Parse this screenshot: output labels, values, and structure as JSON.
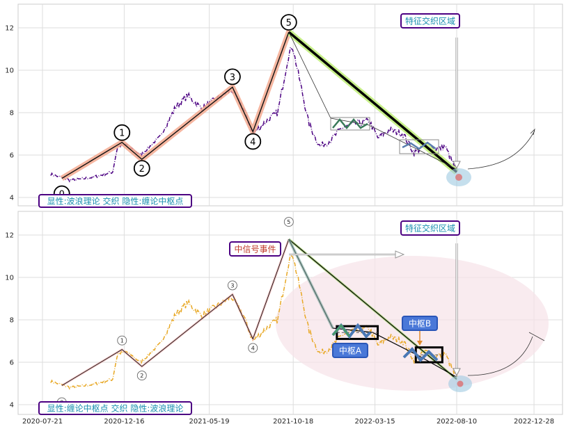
{
  "chart_data": {
    "type": "line",
    "x_ticks": [
      "2020-07-21",
      "2020-12-16",
      "2021-05-19",
      "2021-10-18",
      "2022-03-15",
      "2022-08-10",
      "2022-12-28"
    ],
    "panels": [
      {
        "ylim": [
          3.6,
          13.1
        ],
        "y_ticks": [
          4,
          6,
          8,
          10,
          12
        ],
        "price_color": "#4b0082",
        "wave_color": "#f3a98f",
        "wave_points": [
          {
            "label": "0",
            "date": "2020-08-25",
            "value": 4.9
          },
          {
            "label": "1",
            "date": "2020-12-12",
            "value": 6.6
          },
          {
            "label": "2",
            "date": "2021-01-17",
            "value": 5.8
          },
          {
            "label": "3",
            "date": "2021-06-30",
            "value": 9.2
          },
          {
            "label": "4",
            "date": "2021-08-06",
            "value": 7.1
          },
          {
            "label": "5",
            "date": "2021-10-10",
            "value": 11.8
          },
          {
            "label": "",
            "date": "2022-08-10",
            "value": 5.2
          }
        ],
        "annotations": {
          "feature_zone": "特征交织区域",
          "legend": "显性:波浪理论 交织 隐性:缠论中枢点"
        }
      },
      {
        "ylim": [
          3.6,
          13.1
        ],
        "y_ticks": [
          4,
          6,
          8,
          10,
          12
        ],
        "price_color": "#e8a825",
        "annotations": {
          "feature_zone": "特征交织区域",
          "signal_event": "中信号事件",
          "pivot_a": "中枢A",
          "pivot_b": "中枢B",
          "legend": "显性:缠论中枢点 交织 隐性:波浪理论"
        },
        "pivot_zones": [
          {
            "name": "中枢A",
            "start": "2022-01-05",
            "end": "2022-03-20",
            "low": 7.1,
            "high": 7.7
          },
          {
            "name": "中枢B",
            "start": "2022-05-28",
            "end": "2022-07-15",
            "low": 6.0,
            "high": 6.7
          }
        ]
      }
    ]
  }
}
